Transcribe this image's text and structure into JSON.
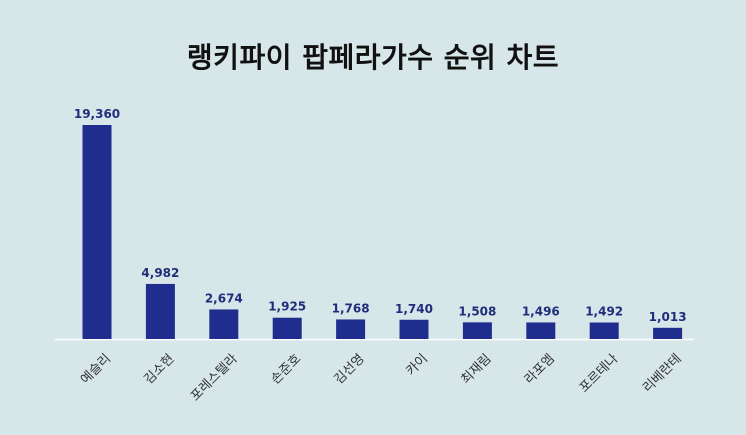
{
  "chart_data": {
    "type": "bar",
    "title": "랭키파이 팝페라가수 순위 차트",
    "categories": [
      "예슬리",
      "김소현",
      "포레스텔라",
      "손준호",
      "김선영",
      "카이",
      "최재림",
      "라포엠",
      "포르테나",
      "리베란테"
    ],
    "values": [
      19360,
      4982,
      2674,
      1925,
      1768,
      1740,
      1508,
      1496,
      1492,
      1013
    ],
    "value_labels": [
      "19,360",
      "4,982",
      "2,674",
      "1,925",
      "1,768",
      "1,740",
      "1,508",
      "1,496",
      "1,492",
      "1,013"
    ],
    "ylim": [
      0,
      19360
    ],
    "grid": false,
    "legend": "none",
    "bar_color": "#1f2d8f",
    "label_color": "#1f2d7a",
    "axis_color": "#ffffff",
    "background": "#d7e6e8"
  }
}
